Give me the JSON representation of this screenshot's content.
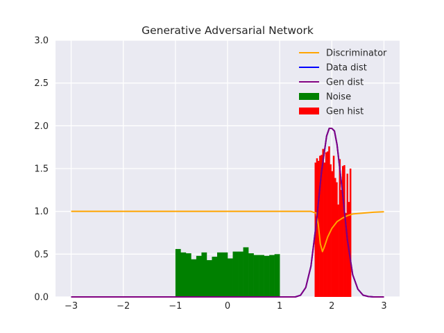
{
  "chart_data": {
    "type": "line",
    "title": "Generative Adversarial Network",
    "xlabel": "",
    "ylabel": "",
    "xlim": [
      -3.3,
      3.3
    ],
    "ylim": [
      0,
      3.0
    ],
    "x_ticks": [
      -3,
      -2,
      -1,
      0,
      1,
      2,
      3
    ],
    "x_tick_labels": [
      "−3",
      "−2",
      "−1",
      "0",
      "1",
      "2",
      "3"
    ],
    "y_ticks": [
      0,
      0.5,
      1.0,
      1.5,
      2.0,
      2.5,
      3.0
    ],
    "y_tick_labels": [
      "0.0",
      "0.5",
      "1.0",
      "1.5",
      "2.0",
      "2.5",
      "3.0"
    ],
    "grid": true,
    "legend_position": "top-right",
    "series": [
      {
        "name": "Discriminator",
        "kind": "line",
        "color": "#ffa500",
        "x": [
          -3.0,
          -2.0,
          -1.0,
          0.0,
          1.0,
          1.6,
          1.7,
          1.74,
          1.78,
          1.82,
          1.86,
          1.92,
          2.0,
          2.1,
          2.2,
          2.3,
          2.4,
          2.6,
          2.8,
          3.0
        ],
        "y": [
          1.0,
          1.0,
          1.0,
          1.0,
          1.0,
          1.0,
          0.98,
          0.85,
          0.62,
          0.53,
          0.59,
          0.7,
          0.8,
          0.88,
          0.92,
          0.95,
          0.97,
          0.98,
          0.99,
          0.995
        ]
      },
      {
        "name": "Data dist",
        "kind": "line",
        "color": "#0000ff",
        "x": [
          -3.0,
          -2.0,
          -1.0,
          0.0,
          1.0,
          1.3,
          1.4,
          1.5,
          1.6,
          1.7,
          1.8,
          1.9,
          1.95,
          2.0,
          2.05,
          2.1,
          2.2,
          2.3,
          2.4,
          2.5,
          2.6,
          2.7,
          2.8,
          3.0
        ],
        "y": [
          0.0,
          0.0,
          0.0,
          0.0,
          0.0,
          0.0,
          0.02,
          0.11,
          0.36,
          0.85,
          1.45,
          1.88,
          1.97,
          1.97,
          1.94,
          1.78,
          1.25,
          0.66,
          0.26,
          0.09,
          0.02,
          0.005,
          0.0,
          0.0
        ]
      },
      {
        "name": "Gen dist",
        "kind": "line",
        "color": "#800080",
        "x": [
          -3.0,
          -2.0,
          -1.0,
          0.0,
          1.0,
          1.3,
          1.4,
          1.5,
          1.6,
          1.7,
          1.8,
          1.9,
          1.95,
          2.0,
          2.05,
          2.1,
          2.2,
          2.3,
          2.4,
          2.5,
          2.6,
          2.7,
          2.8,
          3.0
        ],
        "y": [
          0.0,
          0.0,
          0.0,
          0.0,
          0.0,
          0.0,
          0.02,
          0.11,
          0.36,
          0.85,
          1.45,
          1.88,
          1.97,
          1.97,
          1.94,
          1.78,
          1.25,
          0.66,
          0.26,
          0.09,
          0.02,
          0.005,
          0.0,
          0.0
        ]
      },
      {
        "name": "Noise",
        "kind": "histogram",
        "color": "#008000",
        "bin_start": -1.0,
        "bin_end": 1.0,
        "values": [
          0.56,
          0.52,
          0.51,
          0.44,
          0.48,
          0.52,
          0.43,
          0.47,
          0.52,
          0.52,
          0.45,
          0.53,
          0.53,
          0.58,
          0.51,
          0.49,
          0.49,
          0.48,
          0.49,
          0.5
        ]
      },
      {
        "name": "Gen hist",
        "kind": "histogram",
        "color": "#ff0000",
        "bin_start": 1.67,
        "bin_end": 2.37,
        "values": [
          1.57,
          1.62,
          1.59,
          1.65,
          1.66,
          1.73,
          1.57,
          1.69,
          1.7,
          1.76,
          1.55,
          1.47,
          1.65,
          1.39,
          1.34,
          1.08,
          1.61,
          1.25,
          1.53,
          1.54,
          0.98,
          1.44,
          1.11,
          1.5
        ]
      }
    ]
  }
}
